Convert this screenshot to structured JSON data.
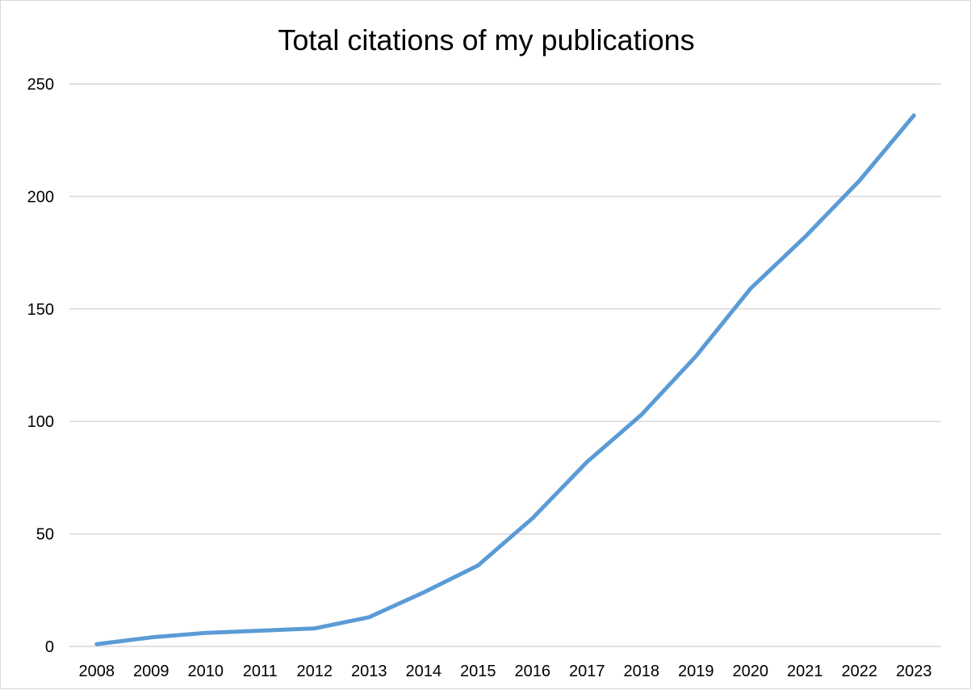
{
  "chart_data": {
    "type": "line",
    "title": "Total citations of my publications",
    "xlabel": "",
    "ylabel": "",
    "categories": [
      "2008",
      "2009",
      "2010",
      "2011",
      "2012",
      "2013",
      "2014",
      "2015",
      "2016",
      "2017",
      "2018",
      "2019",
      "2020",
      "2021",
      "2022",
      "2023"
    ],
    "series": [
      {
        "values": [
          1,
          4,
          6,
          7,
          8,
          13,
          24,
          36,
          57,
          82,
          103,
          129,
          159,
          182,
          207,
          236
        ],
        "color": "#5b9bd5"
      }
    ],
    "ylim": [
      0,
      250
    ],
    "yticks": [
      "0",
      "50",
      "100",
      "150",
      "200",
      "250"
    ],
    "grid": true,
    "gridColor": "#d9d9d9",
    "legend": "none"
  }
}
